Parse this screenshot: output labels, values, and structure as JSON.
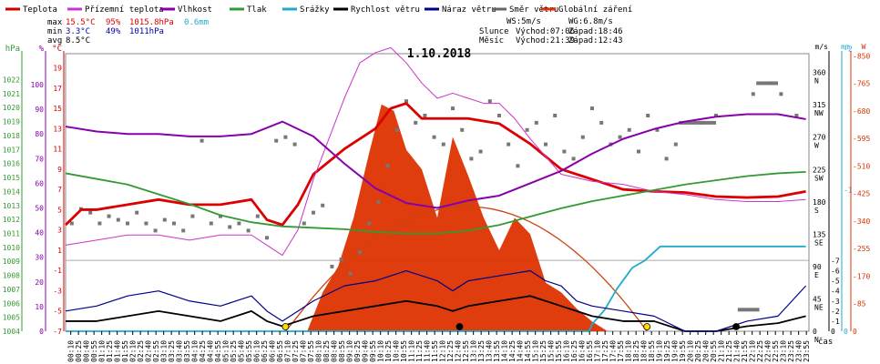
{
  "legend": [
    {
      "label": "Teplota",
      "color": "#cc0000"
    },
    {
      "label": "Přízemní teplota",
      "color": "#cc33cc"
    },
    {
      "label": "Vlhkost",
      "color": "#8800aa"
    },
    {
      "label": "Tlak",
      "color": "#339933"
    },
    {
      "label": "Srážky",
      "color": "#22aacc"
    },
    {
      "label": "Rychlost větru",
      "color": "#000000"
    },
    {
      "label": "Náraz větru",
      "color": "#000088"
    },
    {
      "label": "Směr větru",
      "color": "#666666"
    },
    {
      "label": "Globální záření",
      "color": "#dd3300"
    }
  ],
  "stats": {
    "rows": [
      {
        "label": "max",
        "temp": "15.5°C",
        "hum": "95%",
        "press": "1015.8hPa",
        "rain": "0.6mm"
      },
      {
        "label": "min",
        "temp": "3.3°C",
        "hum": "49%",
        "press": "1011hPa",
        "rain": ""
      },
      {
        "label": "avg",
        "temp": "8.5°C",
        "hum": "",
        "press": "",
        "rain": ""
      }
    ],
    "ws": "WS:5m/s",
    "wg": "WG:6.8m/s",
    "sun": {
      "label": "Slunce",
      "rise": "Východ:07:06",
      "set": "Západ:18:46"
    },
    "moon": {
      "label": "Měsíc",
      "rise": "Východ:21:39",
      "set": "Západ:12:43"
    }
  },
  "chart_data": {
    "type": "line",
    "title": "1.10.2018",
    "left_axes": [
      {
        "unit": "hPa",
        "color": "#339933",
        "ticks": [
          "1022",
          "1021",
          "1020",
          "1019",
          "1018",
          "1017",
          "1016",
          "1015",
          "1014",
          "1013",
          "1012",
          "1011",
          "1010",
          "1009",
          "1008",
          "1007",
          "1006",
          "1005",
          "1004"
        ]
      },
      {
        "unit": "%",
        "color": "#8800aa",
        "ticks": [
          "100",
          "90",
          "80",
          "70",
          "60",
          "50",
          "40",
          "30",
          "20",
          "10",
          "0"
        ]
      },
      {
        "unit": "°C",
        "color": "#cc0000",
        "ticks": [
          "19",
          "17",
          "15",
          "13",
          "11",
          "9",
          "7",
          "5",
          "3",
          "1",
          "-1",
          "-3",
          "-5",
          "-7"
        ]
      }
    ],
    "right_axes": [
      {
        "unit": "m/s",
        "color": "#000000",
        "ticks": [
          "-7",
          "-6",
          "-5",
          "-4",
          "-3",
          "-2",
          "-1",
          "0"
        ]
      },
      {
        "unit": "mm",
        "color": "#22aacc",
        "ticks": [
          "-2",
          "-1",
          "0"
        ]
      },
      {
        "unit": "W",
        "color": "#dd3300",
        "ticks": [
          "-850",
          "-765",
          "-680",
          "-595",
          "-510",
          "-425",
          "-340",
          "-255",
          "-170",
          "-85",
          "0"
        ]
      }
    ],
    "direction_axis": {
      "ticks": [
        "360",
        "N",
        "315",
        "NW",
        "270",
        "W",
        "225",
        "SW",
        "180",
        "S",
        "135",
        "SE",
        "90",
        "E",
        "45",
        "NE",
        "0",
        "N"
      ]
    },
    "x_label": "čas",
    "x_ticks": [
      "00:10",
      "00:25",
      "00:40",
      "00:55",
      "01:10",
      "01:25",
      "01:40",
      "01:55",
      "02:10",
      "02:25",
      "02:40",
      "02:55",
      "03:10",
      "03:25",
      "03:40",
      "03:55",
      "04:10",
      "04:25",
      "04:40",
      "04:55",
      "05:10",
      "05:25",
      "05:40",
      "05:55",
      "06:10",
      "06:25",
      "06:40",
      "06:55",
      "07:10",
      "07:25",
      "07:40",
      "07:55",
      "08:10",
      "08:25",
      "08:40",
      "08:55",
      "09:10",
      "09:25",
      "09:40",
      "09:55",
      "10:10",
      "10:25",
      "10:40",
      "10:55",
      "11:10",
      "11:25",
      "11:40",
      "11:55",
      "12:10",
      "12:25",
      "12:40",
      "12:55",
      "13:10",
      "13:25",
      "13:40",
      "13:55",
      "14:10",
      "14:25",
      "14:40",
      "14:55",
      "15:10",
      "15:25",
      "15:40",
      "15:55",
      "16:10",
      "16:25",
      "16:40",
      "16:55",
      "17:10",
      "17:25",
      "17:40",
      "17:55",
      "18:10",
      "18:25",
      "18:40",
      "18:55",
      "19:10",
      "19:25",
      "19:40",
      "19:55",
      "20:10",
      "20:25",
      "20:40",
      "20:55",
      "21:10",
      "21:25",
      "21:40",
      "21:55",
      "22:10",
      "22:25",
      "22:40",
      "22:55",
      "23:10",
      "23:25",
      "23:40",
      "23:55"
    ],
    "series": [
      {
        "name": "Teplota",
        "axis": "°C",
        "color": "#dd0000",
        "x": [
          0,
          0.5,
          1,
          2,
          3,
          4,
          5,
          6,
          6.5,
          7,
          7.5,
          8,
          9,
          10,
          10.5,
          11,
          11.5,
          12,
          13,
          14,
          15,
          16,
          17,
          18,
          19,
          20,
          21,
          22,
          23,
          23.9
        ],
        "y": [
          3.5,
          5,
          5,
          5.5,
          6,
          5.5,
          5.5,
          6,
          4,
          3.5,
          5.5,
          8.5,
          11,
          13,
          15,
          15.5,
          14,
          14,
          14,
          13.5,
          11.5,
          9,
          8,
          7,
          6.8,
          6.7,
          6.3,
          6.2,
          6.3,
          6.8
        ]
      },
      {
        "name": "Přízemní teplota",
        "axis": "°C",
        "color": "#cc33cc",
        "x": [
          0,
          1,
          2,
          3,
          4,
          5,
          6,
          6.5,
          7,
          7.5,
          8,
          8.5,
          9,
          9.5,
          10,
          10.5,
          11,
          11.5,
          12,
          12.5,
          13,
          13.5,
          14,
          14.5,
          15,
          16,
          17,
          18,
          19,
          20,
          21,
          22,
          23,
          23.9
        ],
        "y": [
          1.5,
          2,
          2.5,
          2.5,
          2,
          2.5,
          2.5,
          1.5,
          0.5,
          3,
          8,
          12,
          16,
          19.5,
          20.5,
          21,
          19.5,
          17.5,
          16,
          16.5,
          16,
          15.5,
          15.5,
          14,
          12,
          8.5,
          7.8,
          7.5,
          6.8,
          6.5,
          6,
          5.8,
          5.8,
          6
        ]
      },
      {
        "name": "Vlhkost",
        "axis": "%",
        "color": "#8800aa",
        "x": [
          0,
          1,
          2,
          3,
          4,
          5,
          6,
          7,
          8,
          9,
          10,
          11,
          12,
          13,
          14,
          15,
          16,
          17,
          18,
          19,
          20,
          21,
          22,
          23,
          23.9
        ],
        "y": [
          83,
          81,
          80,
          80,
          79,
          79,
          80,
          85,
          79,
          68,
          58,
          52,
          50,
          53,
          55,
          60,
          65,
          72,
          78,
          82,
          85,
          87,
          88,
          88,
          86
        ]
      },
      {
        "name": "Tlak",
        "axis": "hPa",
        "color": "#339933",
        "x": [
          0,
          2,
          4,
          5,
          6,
          7,
          8,
          9,
          10,
          11,
          12,
          13,
          14,
          15,
          16,
          17,
          18,
          19,
          20,
          21,
          22,
          23,
          23.9
        ],
        "y": [
          1015.3,
          1014.5,
          1013.1,
          1012.3,
          1011.8,
          1011.5,
          1011.4,
          1011.3,
          1011.1,
          1011.0,
          1011.0,
          1011.2,
          1011.6,
          1012.2,
          1012.8,
          1013.3,
          1013.7,
          1014.1,
          1014.5,
          1014.8,
          1015.1,
          1015.3,
          1015.4
        ]
      },
      {
        "name": "Srážky",
        "axis": "mm",
        "color": "#22aacc",
        "x": [
          0,
          16.9,
          17.0,
          17.4,
          17.8,
          18.3,
          18.7,
          19.2,
          23.9
        ],
        "y": [
          0,
          0,
          0.05,
          0.15,
          0.3,
          0.45,
          0.5,
          0.6,
          0.6
        ]
      },
      {
        "name": "Rychlost větru",
        "axis": "m/s",
        "color": "#000000",
        "x": [
          0,
          1,
          2,
          3,
          4,
          5,
          6,
          6.5,
          7,
          7.5,
          8,
          9,
          10,
          11,
          12,
          12.5,
          13,
          14,
          15,
          15.5,
          16,
          16.5,
          17,
          18,
          19,
          20,
          21,
          22,
          23,
          23.9
        ],
        "y": [
          1,
          1,
          1.5,
          2,
          1.5,
          1,
          2,
          1,
          0.5,
          1,
          1.5,
          2,
          2.5,
          3,
          2.5,
          2,
          2.5,
          3,
          3.5,
          3,
          2.5,
          2,
          1.5,
          1,
          1,
          0,
          0,
          0.5,
          0.8,
          1.5
        ]
      },
      {
        "name": "Náraz větru",
        "axis": "m/s",
        "color": "#000088",
        "x": [
          0,
          1,
          2,
          3,
          4,
          5,
          6,
          6.5,
          7,
          7.5,
          8,
          9,
          10,
          11,
          12,
          12.5,
          13,
          14,
          15,
          15.5,
          16,
          16.5,
          17,
          18,
          19,
          20,
          21,
          22,
          23,
          23.9
        ],
        "y": [
          2,
          2.5,
          3.5,
          4,
          3,
          2.5,
          3.5,
          2,
          1,
          2,
          3,
          4.5,
          5,
          6,
          5,
          4,
          5,
          5.5,
          6,
          5,
          4.5,
          3,
          2.5,
          2,
          1.5,
          0,
          0,
          1,
          1.5,
          4.5
        ]
      },
      {
        "name": "Globální záření",
        "axis": "W",
        "color": "#dd3300",
        "x": [
          7.8,
          8.3,
          8.8,
          9.3,
          9.8,
          10.2,
          10.6,
          11.0,
          11.5,
          12.0,
          12.5,
          13.0,
          13.5,
          14.0,
          14.5,
          15.0,
          15.5,
          16.0,
          16.3,
          16.5,
          17,
          17.5
        ],
        "y": [
          0,
          120,
          200,
          350,
          550,
          700,
          680,
          560,
          500,
          350,
          600,
          480,
          350,
          250,
          350,
          300,
          150,
          120,
          90,
          70,
          30,
          0
        ]
      }
    ],
    "clear_sky_radiation": {
      "x": [
        7.1,
        12.95,
        18.77
      ],
      "y": [
        0,
        385,
        0
      ]
    },
    "wind_direction": {
      "x": [
        0.2,
        0.5,
        0.8,
        1.1,
        1.4,
        1.7,
        2,
        2.3,
        2.6,
        2.9,
        3.2,
        3.5,
        3.8,
        4.1,
        4.4,
        4.7,
        5,
        5.3,
        5.6,
        5.9,
        6.2,
        6.5,
        6.8,
        7.1,
        7.4,
        7.7,
        8,
        8.3,
        8.6,
        8.9,
        9.2,
        9.5,
        9.8,
        10.1,
        10.4,
        10.7,
        11,
        11.3,
        11.6,
        11.9,
        12.2,
        12.5,
        12.8,
        13.1,
        13.4,
        13.7,
        14,
        14.3,
        14.6,
        14.9,
        15.2,
        15.5,
        15.8,
        16.1,
        16.4,
        16.7,
        17,
        17.3,
        17.6,
        17.9,
        18.2,
        18.5,
        18.8,
        19.1,
        19.4,
        19.7,
        20.5,
        21,
        22.2,
        22.8,
        23.1,
        23.6
      ],
      "y": [
        150,
        170,
        165,
        150,
        160,
        155,
        150,
        165,
        150,
        140,
        155,
        150,
        140,
        160,
        265,
        150,
        160,
        145,
        150,
        140,
        160,
        130,
        265,
        270,
        260,
        150,
        165,
        175,
        90,
        100,
        80,
        110,
        150,
        180,
        230,
        280,
        320,
        290,
        300,
        270,
        260,
        310,
        280,
        240,
        250,
        320,
        300,
        260,
        230,
        280,
        290,
        260,
        300,
        250,
        240,
        270,
        310,
        290,
        260,
        270,
        280,
        250,
        300,
        280,
        240,
        260,
        290,
        300,
        330,
        345,
        330,
        300
      ]
    },
    "wind_direction_bars": [
      {
        "x_start": 19.8,
        "x_end": 21.0,
        "y": 290
      },
      {
        "x_start": 22.3,
        "x_end": 23.0,
        "y": 345
      },
      {
        "x_start": 21.7,
        "x_end": 22.4,
        "y": 30
      }
    ],
    "events": [
      {
        "time": 7.1,
        "type": "sunrise",
        "color": "#ffdd00"
      },
      {
        "time": 12.72,
        "type": "moonset",
        "color": "#000000"
      },
      {
        "time": 18.77,
        "type": "sunset",
        "color": "#ffdd00"
      },
      {
        "time": 21.65,
        "type": "moonrise",
        "color": "#000000"
      }
    ]
  }
}
